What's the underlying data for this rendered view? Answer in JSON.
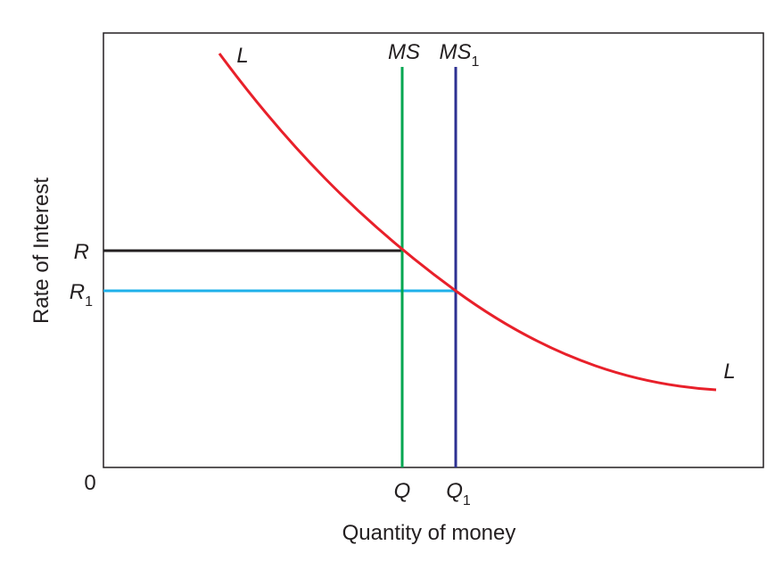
{
  "curve_labels": {
    "demand_top": "L",
    "demand_bottom": "L"
  },
  "supply_labels": {
    "ms": "MS",
    "ms1": {
      "text": "MS",
      "subscript": "1"
    }
  },
  "y_labels": {
    "r": "R",
    "r1": {
      "text": "R",
      "subscript": "1"
    }
  },
  "x_labels": {
    "origin": "0",
    "q": "Q",
    "q1": {
      "text": "Q",
      "subscript": "1"
    }
  },
  "axes": {
    "x_title": "Quantity of money",
    "y_title": "Rate of Interest"
  }
}
